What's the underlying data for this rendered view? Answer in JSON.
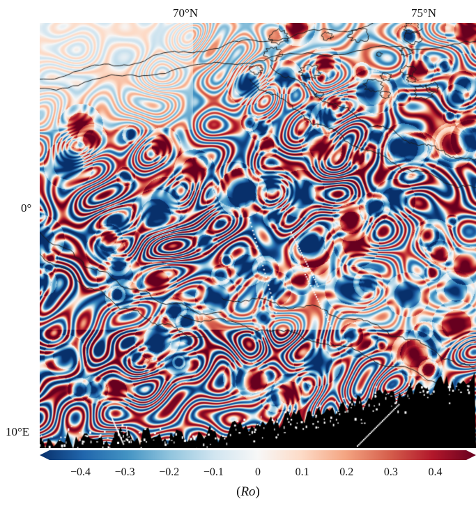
{
  "figure": {
    "latitude_labels": [
      "70°N",
      "75°N"
    ],
    "longitude_labels": [
      "0°",
      "10°E"
    ],
    "colorbar": {
      "ticks": [
        "−0.4",
        "−0.3",
        "−0.2",
        "−0.1",
        "0",
        "0.1",
        "0.2",
        "0.3",
        "0.4"
      ],
      "tick_values": [
        -0.4,
        -0.3,
        -0.2,
        -0.1,
        0,
        0.1,
        0.2,
        0.3,
        0.4
      ],
      "range": [
        -0.47,
        0.47
      ],
      "extend": "both",
      "label_open": "(",
      "label_var": "Ro",
      "label_close": ")",
      "colormap": [
        "#08306b",
        "#2166ac",
        "#4393c3",
        "#92c5de",
        "#d1e5f0",
        "#f7f7f7",
        "#fddbc7",
        "#f4a582",
        "#d6604d",
        "#b2182b",
        "#67001f"
      ]
    },
    "colors": {
      "land": "#000000",
      "contour": "#1a1a1a",
      "coast": "#ffffff"
    }
  }
}
